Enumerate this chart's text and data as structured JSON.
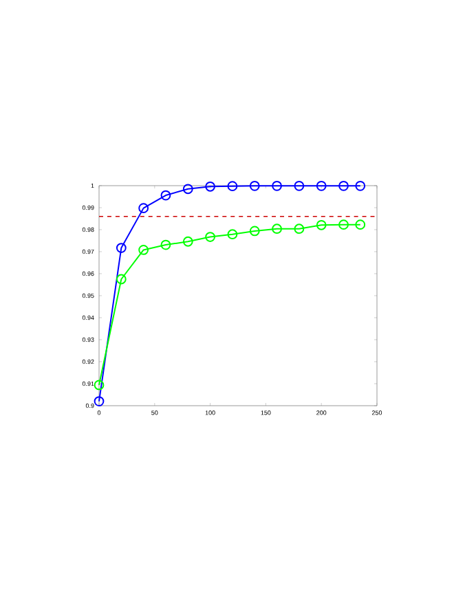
{
  "chart_data": {
    "type": "line",
    "marker": "circle",
    "line_style": "solid",
    "grid": false,
    "x": [
      0,
      20,
      40,
      60,
      80,
      100,
      120,
      140,
      160,
      180,
      200,
      220,
      235
    ],
    "series": [
      {
        "color": "#0000ff",
        "values": [
          0.902,
          0.9717,
          0.9898,
          0.9956,
          0.9985,
          0.9996,
          0.9998,
          0.9999,
          0.9999,
          0.9999,
          0.9999,
          0.9999,
          0.9999
        ]
      },
      {
        "color": "#00ff00",
        "values": [
          0.9094,
          0.9575,
          0.9708,
          0.9731,
          0.9746,
          0.9767,
          0.9779,
          0.9794,
          0.9804,
          0.9804,
          0.9821,
          0.9823,
          0.9823
        ]
      }
    ],
    "ref_lines": [
      {
        "axis": "y",
        "value": 0.986,
        "color": "#cc0000",
        "line_style": "dashed"
      }
    ],
    "xlim": [
      0,
      250
    ],
    "xticks": [
      0,
      50,
      100,
      150,
      200,
      250
    ],
    "ylim": [
      0.9,
      1
    ],
    "yticks": [
      0.9,
      0.91,
      0.92,
      0.93,
      0.94,
      0.95,
      0.96,
      0.97,
      0.98,
      0.99,
      1
    ]
  }
}
